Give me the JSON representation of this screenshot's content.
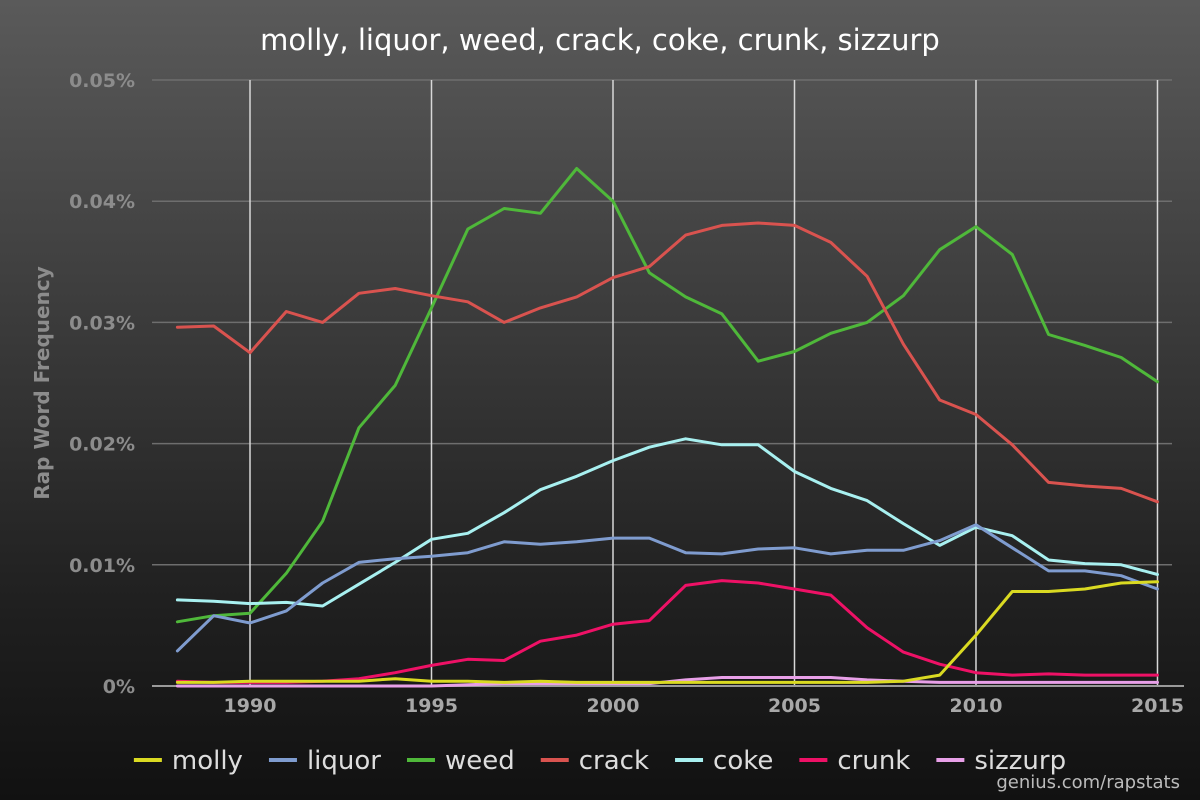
{
  "chart_data": {
    "type": "line",
    "title": "molly, liquor, weed, crack, coke, crunk, sizzurp",
    "ylabel": "Rap Word Frequency",
    "xlim": [
      1987.3,
      2015.4
    ],
    "ylim": [
      0,
      0.05
    ],
    "y_ticks": [
      {
        "value": 0.05,
        "label": "0.05%"
      },
      {
        "value": 0.04,
        "label": "0.04%"
      },
      {
        "value": 0.03,
        "label": "0.03%"
      },
      {
        "value": 0.02,
        "label": "0.02%"
      },
      {
        "value": 0.01,
        "label": "0.01%"
      },
      {
        "value": 0,
        "label": "0%"
      }
    ],
    "x_ticks": [
      {
        "value": 1990,
        "label": "1990"
      },
      {
        "value": 1995,
        "label": "1995"
      },
      {
        "value": 2000,
        "label": "2000"
      },
      {
        "value": 2005,
        "label": "2005"
      },
      {
        "value": 2010,
        "label": "2010"
      },
      {
        "value": 2015,
        "label": "2015"
      }
    ],
    "grid": true,
    "legend_position": "bottom",
    "x": [
      1988,
      1989,
      1990,
      1991,
      1992,
      1993,
      1994,
      1995,
      1996,
      1997,
      1998,
      1999,
      2000,
      2001,
      2002,
      2003,
      2004,
      2005,
      2006,
      2007,
      2008,
      2009,
      2010,
      2011,
      2012,
      2013,
      2014,
      2015
    ],
    "series": [
      {
        "name": "weed",
        "color": "#4fb83a",
        "values": [
          0.0053,
          0.0058,
          0.006,
          0.0093,
          0.0136,
          0.0213,
          0.0248,
          0.0312,
          0.0377,
          0.0394,
          0.039,
          0.0427,
          0.04,
          0.0341,
          0.0321,
          0.0307,
          0.0268,
          0.0276,
          0.0291,
          0.03,
          0.0322,
          0.036,
          0.0379,
          0.0356,
          0.029,
          0.0281,
          0.0271,
          0.0251
        ]
      },
      {
        "name": "crack",
        "color": "#d9534f",
        "values": [
          0.0296,
          0.0297,
          0.0275,
          0.0309,
          0.03,
          0.0324,
          0.0328,
          0.0322,
          0.0317,
          0.03,
          0.0312,
          0.0321,
          0.0337,
          0.0346,
          0.0372,
          0.038,
          0.0382,
          0.038,
          0.0366,
          0.0338,
          0.0282,
          0.0236,
          0.0224,
          0.0199,
          0.0168,
          0.0165,
          0.0163,
          0.0152
        ]
      },
      {
        "name": "coke",
        "color": "#a8f0f0",
        "values": [
          0.0071,
          0.007,
          0.0068,
          0.0069,
          0.0066,
          0.0084,
          0.0102,
          0.0121,
          0.0126,
          0.0143,
          0.0162,
          0.0173,
          0.0186,
          0.0197,
          0.0204,
          0.0199,
          0.0199,
          0.0177,
          0.0163,
          0.0153,
          0.0134,
          0.0116,
          0.0131,
          0.0124,
          0.0104,
          0.0101,
          0.01,
          0.0092
        ]
      },
      {
        "name": "liquor",
        "color": "#7f9ccf",
        "values": [
          0.0029,
          0.0058,
          0.0052,
          0.0062,
          0.0085,
          0.0102,
          0.0105,
          0.0107,
          0.011,
          0.0119,
          0.0117,
          0.0119,
          0.0122,
          0.0122,
          0.011,
          0.0109,
          0.0113,
          0.0114,
          0.0109,
          0.0112,
          0.0112,
          0.012,
          0.0133,
          0.0114,
          0.0095,
          0.0095,
          0.0091,
          0.008
        ]
      },
      {
        "name": "crunk",
        "color": "#ee1166",
        "values": [
          0.0004,
          0.0003,
          0.0003,
          0.0003,
          0.0004,
          0.0006,
          0.0011,
          0.0017,
          0.0022,
          0.0021,
          0.0037,
          0.0042,
          0.0051,
          0.0054,
          0.0083,
          0.0087,
          0.0085,
          0.008,
          0.0075,
          0.0048,
          0.0028,
          0.0018,
          0.0011,
          0.0009,
          0.001,
          0.0009,
          0.0009,
          0.0009
        ]
      },
      {
        "name": "sizzurp",
        "color": "#e8a0e8",
        "values": [
          0,
          0,
          0,
          0,
          0,
          0,
          0,
          0,
          0.0001,
          0.0002,
          0.0002,
          0.0002,
          0.0002,
          0.0002,
          0.0005,
          0.0007,
          0.0007,
          0.0007,
          0.0007,
          0.0005,
          0.0004,
          0.0003,
          0.0003,
          0.0003,
          0.0003,
          0.0003,
          0.0003,
          0.0003
        ]
      },
      {
        "name": "molly",
        "color": "#dada22",
        "values": [
          0.0003,
          0.0003,
          0.0004,
          0.0004,
          0.0004,
          0.0004,
          0.0006,
          0.0004,
          0.0004,
          0.0003,
          0.0004,
          0.0003,
          0.0003,
          0.0003,
          0.0003,
          0.0003,
          0.0003,
          0.0003,
          0.0003,
          0.0003,
          0.0004,
          0.0009,
          0.0042,
          0.0078,
          0.0078,
          0.008,
          0.0085,
          0.0086
        ]
      }
    ],
    "legend": [
      {
        "name": "molly",
        "color": "#dada22"
      },
      {
        "name": "liquor",
        "color": "#7f9ccf"
      },
      {
        "name": "weed",
        "color": "#4fb83a"
      },
      {
        "name": "crack",
        "color": "#d9534f"
      },
      {
        "name": "coke",
        "color": "#a8f0f0"
      },
      {
        "name": "crunk",
        "color": "#ee1166"
      },
      {
        "name": "sizzurp",
        "color": "#e8a0e8"
      }
    ]
  },
  "watermark": "genius.com/rapstats"
}
